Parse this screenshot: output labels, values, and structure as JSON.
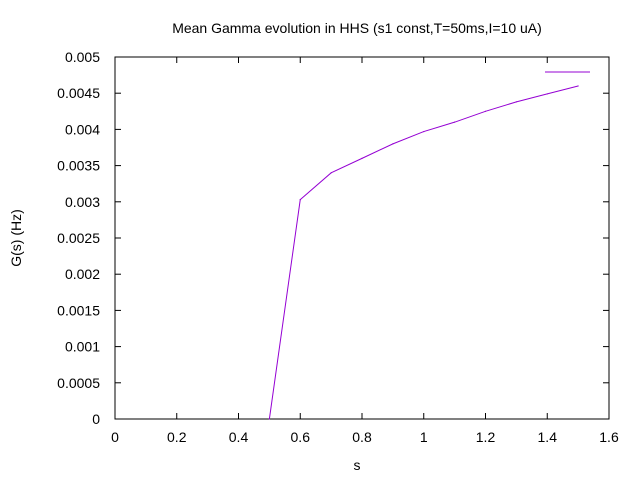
{
  "chart_data": {
    "type": "line",
    "title": "Mean Gamma evolution in HHS (s1 const,T=50ms,I=10 uA)",
    "xlabel": "s",
    "ylabel": "G(s) (Hz)",
    "xlim": [
      0,
      1.6
    ],
    "ylim": [
      0,
      0.005
    ],
    "x_ticks": [
      0,
      0.2,
      0.4,
      0.6,
      0.8,
      1,
      1.2,
      1.4,
      1.6
    ],
    "x_tick_labels": [
      "0",
      "0.2",
      "0.4",
      "0.6",
      "0.8",
      "1",
      "1.2",
      "1.4",
      "1.6"
    ],
    "y_ticks": [
      0,
      0.0005,
      0.001,
      0.0015,
      0.002,
      0.0025,
      0.003,
      0.0035,
      0.004,
      0.0045,
      0.005
    ],
    "y_tick_labels": [
      "0",
      "0.0005",
      "0.001",
      "0.0015",
      "0.002",
      "0.0025",
      "0.003",
      "0.0035",
      "0.004",
      "0.0045",
      "0.005"
    ],
    "grid": false,
    "legend": "top-right",
    "series": [
      {
        "color": "#9400d3",
        "x": [
          0.5,
          0.6,
          0.7,
          0.8,
          0.9,
          1.0,
          1.1,
          1.2,
          1.3,
          1.4,
          1.5
        ],
        "y": [
          0,
          0.00303,
          0.0034,
          0.0036,
          0.0038,
          0.00397,
          0.0041,
          0.00425,
          0.00438,
          0.00449,
          0.0046
        ]
      }
    ]
  }
}
